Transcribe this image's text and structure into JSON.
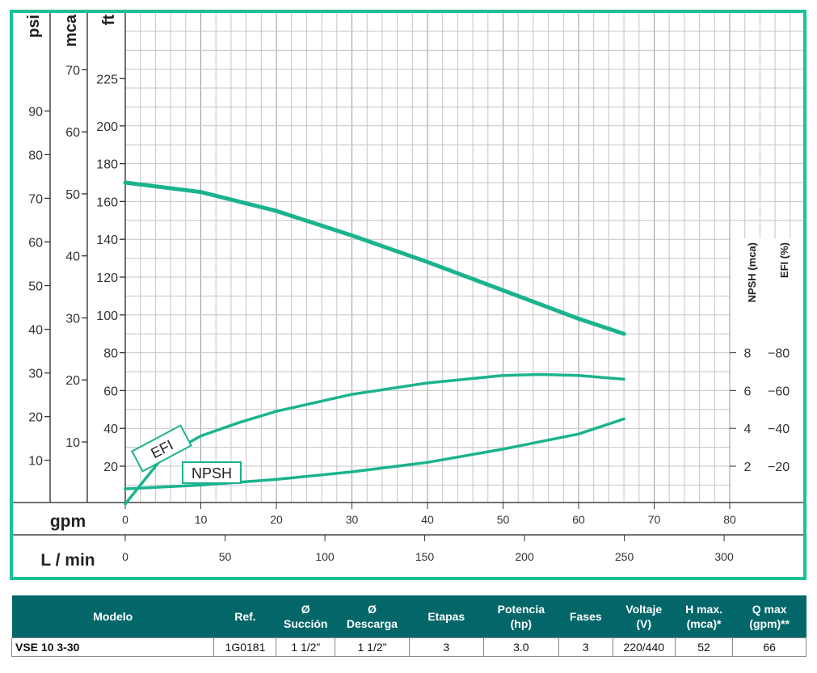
{
  "chart_data": {
    "type": "line",
    "x_primary": {
      "label": "gpm",
      "ticks": [
        0,
        10,
        20,
        30,
        40,
        50,
        60,
        70,
        80
      ],
      "range": [
        0,
        90
      ]
    },
    "x_secondary": {
      "label": "L / min",
      "ticks": [
        0,
        50,
        100,
        150,
        200,
        250,
        300
      ]
    },
    "y_axes": [
      {
        "label": "psi",
        "ticks": [
          10,
          20,
          30,
          40,
          50,
          60,
          70,
          80,
          90
        ]
      },
      {
        "label": "mca",
        "ticks": [
          10,
          20,
          30,
          40,
          50,
          60,
          70
        ]
      },
      {
        "label": "ft",
        "ticks": [
          20,
          40,
          60,
          80,
          100,
          120,
          140,
          160,
          180,
          200,
          225
        ],
        "range": [
          0,
          260
        ]
      }
    ],
    "y_right_axes": [
      {
        "label": "NPSH (mca)",
        "ticks": [
          2,
          4,
          6,
          8
        ]
      },
      {
        "label": "EFI (%)",
        "ticks": [
          20,
          40,
          60,
          80
        ]
      }
    ],
    "grid": true,
    "series": [
      {
        "name": "H",
        "unit": "ft",
        "x": [
          0,
          10,
          20,
          30,
          40,
          50,
          60,
          66
        ],
        "y": [
          170,
          165,
          155,
          142,
          128,
          113,
          98,
          90
        ]
      },
      {
        "name": "EFI",
        "unit": "%",
        "label": "EFI",
        "x": [
          0,
          5,
          10,
          15,
          20,
          30,
          40,
          50,
          55,
          60,
          66
        ],
        "y": [
          0,
          25,
          36,
          43,
          49,
          58,
          64,
          68,
          68.5,
          68,
          66
        ]
      },
      {
        "name": "NPSH",
        "unit": "mca",
        "label": "NPSH",
        "x": [
          0,
          10,
          20,
          30,
          40,
          50,
          60,
          66
        ],
        "y": [
          0.8,
          1.0,
          1.3,
          1.7,
          2.2,
          2.9,
          3.7,
          4.5
        ]
      }
    ]
  },
  "colors": {
    "curve": "#1bb38e",
    "frame": "#1cc097",
    "table_header": "#03676a"
  },
  "table": {
    "headers": [
      "Modelo",
      "Ref.",
      "Ø Succión",
      "Ø Descarga",
      "Etapas",
      "Potencia (hp)",
      "Fases",
      "Voltaje (V)",
      "H max. (mca)*",
      "Q max (gpm)**"
    ],
    "rows": [
      [
        "VSE 10 3-30",
        "1G0181",
        "1 1/2”",
        "1 1/2”",
        "3",
        "3.0",
        "3",
        "220/440",
        "52",
        "66"
      ]
    ]
  }
}
